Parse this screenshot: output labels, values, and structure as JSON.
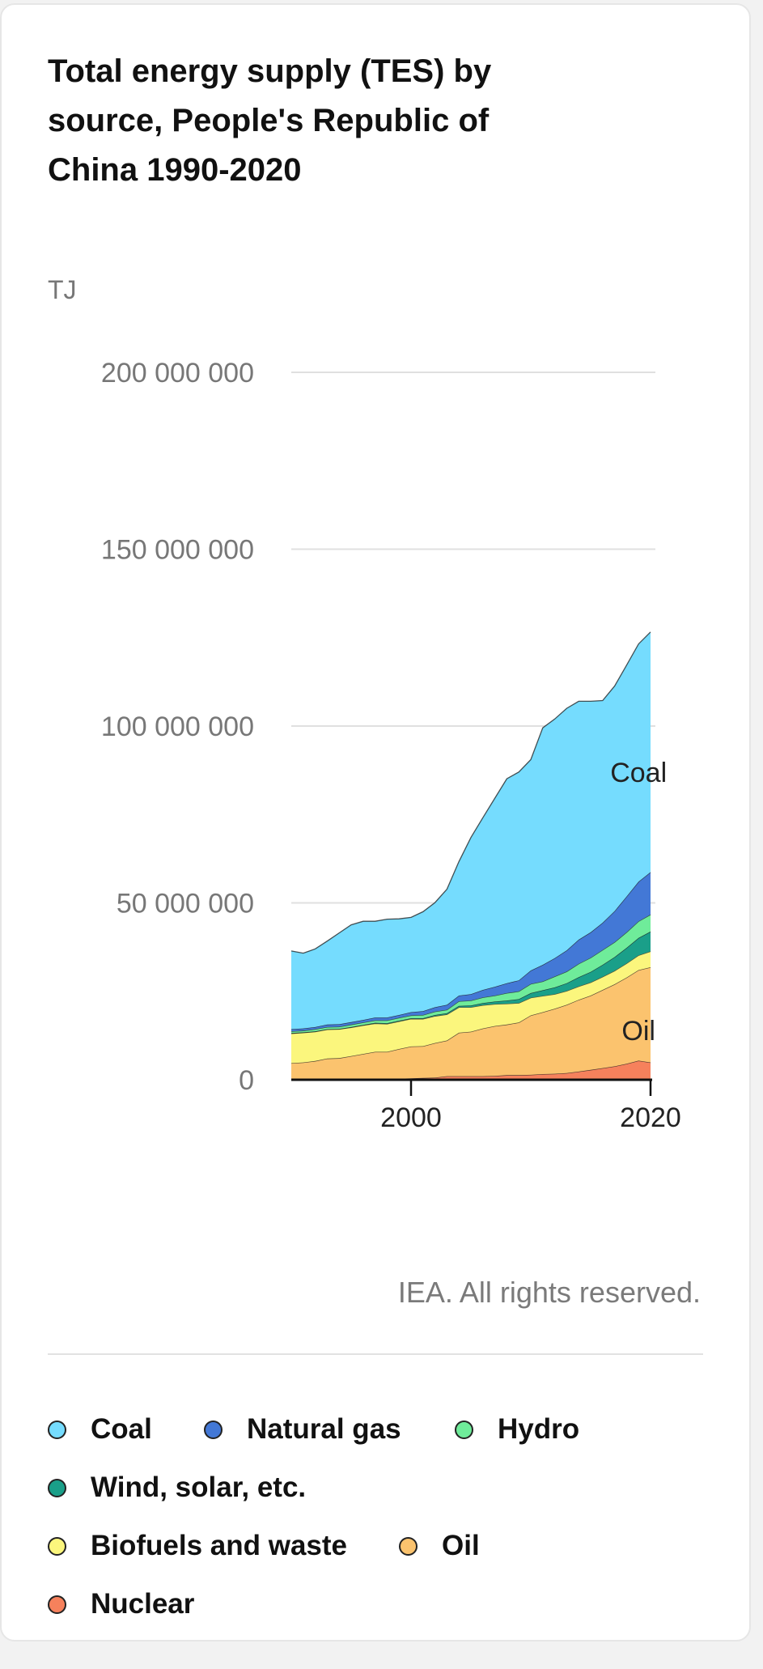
{
  "title": "Total energy supply (TES) by source, People's Republic of China 1990-2020",
  "copyright": "IEA. All rights reserved.",
  "legend": [
    {
      "label": "Coal",
      "color": "#75dcfe"
    },
    {
      "label": "Natural gas",
      "color": "#4378d6"
    },
    {
      "label": "Hydro",
      "color": "#6fec9a"
    },
    {
      "label": "Wind, solar, etc.",
      "color": "#1a9f89"
    },
    {
      "label": "Biofuels and waste",
      "color": "#fbf67d"
    },
    {
      "label": "Oil",
      "color": "#fbc36e"
    },
    {
      "label": "Nuclear",
      "color": "#f6815c"
    }
  ],
  "chart_data": {
    "type": "area",
    "stacked": true,
    "unit_label": "TJ",
    "ylim": [
      0,
      200000000
    ],
    "yticks": [
      0,
      50000000,
      100000000,
      150000000,
      200000000
    ],
    "ytick_labels": [
      "0",
      "50 000 000",
      "100 000 000",
      "150 000 000",
      "200 000 000"
    ],
    "xlim": [
      1990,
      2020
    ],
    "xticks": [
      2000,
      2020
    ],
    "xtick_labels": [
      "2000",
      "2020"
    ],
    "annotations": [
      {
        "text": "Coal",
        "series": "Coal",
        "x": 2019,
        "y": 87000000
      },
      {
        "text": "Oil",
        "series": "Oil",
        "x": 2019,
        "y": 14000000
      }
    ],
    "x": [
      1990,
      1991,
      1992,
      1993,
      1994,
      1995,
      1996,
      1997,
      1998,
      1999,
      2000,
      2001,
      2002,
      2003,
      2004,
      2005,
      2006,
      2007,
      2008,
      2009,
      2010,
      2011,
      2012,
      2013,
      2014,
      2015,
      2016,
      2017,
      2018,
      2019,
      2020
    ],
    "series": [
      {
        "name": "Nuclear",
        "color": "#f6815c",
        "values": [
          0,
          0,
          0,
          200000,
          200000,
          200000,
          300000,
          300000,
          300000,
          300000,
          400000,
          500000,
          600000,
          1000000,
          1000000,
          1000000,
          1000000,
          1100000,
          1300000,
          1300000,
          1400000,
          1600000,
          1700000,
          1900000,
          2300000,
          2800000,
          3300000,
          3800000,
          4500000,
          5400000,
          4900000
        ]
      },
      {
        "name": "Oil",
        "color": "#fbc36e",
        "values": [
          4700000,
          4900000,
          5300000,
          5800000,
          5900000,
          6500000,
          7000000,
          7600000,
          7600000,
          8400000,
          9000000,
          9000000,
          9800000,
          10100000,
          12300000,
          12600000,
          13500000,
          14100000,
          14300000,
          14900000,
          16800000,
          17500000,
          18400000,
          19300000,
          20300000,
          21000000,
          22100000,
          23200000,
          24400000,
          25600000,
          26900000
        ]
      },
      {
        "name": "Biofuels and waste",
        "color": "#fbf67d",
        "values": [
          8400000,
          8400000,
          8300000,
          8200000,
          8200000,
          8100000,
          8100000,
          8000000,
          7900000,
          7800000,
          7800000,
          7700000,
          7600000,
          7400000,
          7200000,
          6900000,
          6600000,
          6200000,
          5900000,
          5500000,
          5000000,
          4600000,
          4100000,
          3900000,
          3800000,
          3700000,
          3700000,
          3800000,
          4000000,
          4200000,
          4500000
        ]
      },
      {
        "name": "Wind, solar, etc.",
        "color": "#1a9f89",
        "values": [
          100000,
          100000,
          100000,
          100000,
          100000,
          100000,
          100000,
          200000,
          200000,
          200000,
          200000,
          200000,
          300000,
          300000,
          400000,
          500000,
          600000,
          700000,
          900000,
          1100000,
          1300000,
          1600000,
          1900000,
          2200000,
          2600000,
          3000000,
          3400000,
          3900000,
          4400000,
          4900000,
          5600000
        ]
      },
      {
        "name": "Hydro",
        "color": "#6fec9a",
        "values": [
          500000,
          500000,
          600000,
          600000,
          600000,
          700000,
          700000,
          700000,
          800000,
          800000,
          800000,
          900000,
          1000000,
          1000000,
          1300000,
          1400000,
          1600000,
          1700000,
          2100000,
          2200000,
          2600000,
          2500000,
          3100000,
          3300000,
          3800000,
          4000000,
          4200000,
          4200000,
          4400000,
          4700000,
          4800000
        ]
      },
      {
        "name": "Natural gas",
        "color": "#4378d6",
        "values": [
          600000,
          600000,
          600000,
          700000,
          700000,
          700000,
          700000,
          800000,
          800000,
          800000,
          900000,
          1100000,
          1200000,
          1400000,
          1600000,
          1800000,
          2100000,
          2500000,
          2800000,
          3100000,
          3800000,
          4700000,
          5200000,
          6000000,
          6800000,
          7200000,
          7700000,
          8800000,
          10100000,
          11200000,
          12000000
        ]
      },
      {
        "name": "Coal",
        "color": "#75dcfe",
        "values": [
          22100000,
          21300000,
          22100000,
          23600000,
          25800000,
          27500000,
          27900000,
          27200000,
          27800000,
          27200000,
          26800000,
          28100000,
          29600000,
          32700000,
          37900000,
          44300000,
          48700000,
          53300000,
          57800000,
          58900000,
          59600000,
          67000000,
          67600000,
          68400000,
          67400000,
          65300000,
          62800000,
          63600000,
          65400000,
          67200000,
          67900000
        ]
      }
    ]
  }
}
